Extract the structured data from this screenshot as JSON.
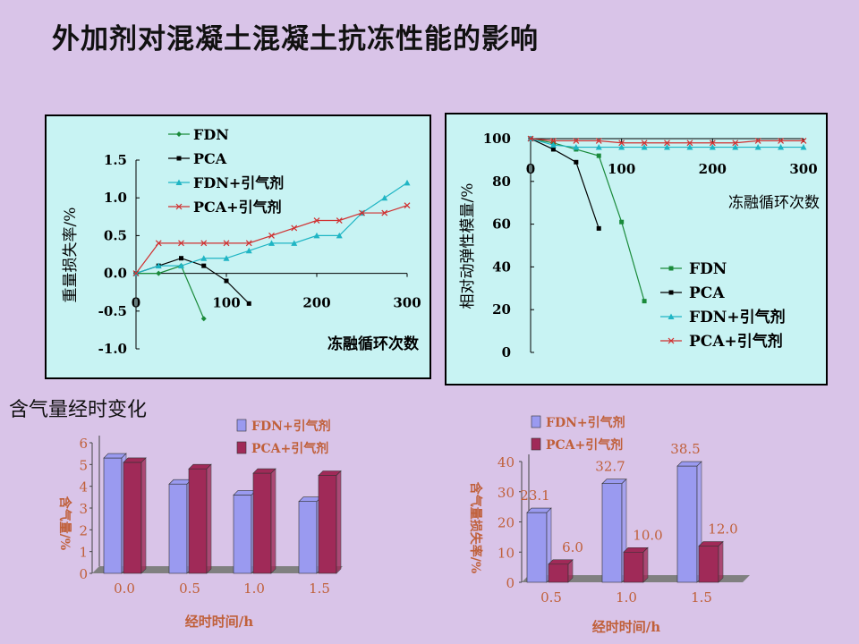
{
  "page": {
    "title": "外加剂对混凝土混凝土抗冻性能的影响",
    "subtitle": "含气量经时变化"
  },
  "chart_data": [
    {
      "id": "mass-loss",
      "type": "line",
      "xlabel": "冻融循环次数",
      "ylabel": "重量损失率/%",
      "xlim": [
        0,
        300
      ],
      "ylim": [
        -1.0,
        1.5
      ],
      "xticks": [
        "0",
        "100",
        "200",
        "300"
      ],
      "yticks": [
        "1.5",
        "1.0",
        "0.5",
        "0.0",
        "-0.5",
        "-1.0"
      ],
      "legend_position": "top-left",
      "series": [
        {
          "name": "FDN",
          "color": "#1a8a3a",
          "marker": "diamond",
          "x": [
            0,
            25,
            50,
            75
          ],
          "y": [
            0,
            0,
            0.1,
            -0.6
          ]
        },
        {
          "name": "PCA",
          "color": "#000000",
          "marker": "square",
          "x": [
            0,
            25,
            50,
            75,
            100,
            125
          ],
          "y": [
            0,
            0.1,
            0.2,
            0.1,
            -0.1,
            -0.4
          ]
        },
        {
          "name": "FDN+引气剂",
          "color": "#1fb5c4",
          "marker": "triangle",
          "x": [
            0,
            25,
            50,
            75,
            100,
            125,
            150,
            175,
            200,
            225,
            250,
            275,
            300
          ],
          "y": [
            0,
            0.1,
            0.1,
            0.2,
            0.2,
            0.3,
            0.4,
            0.4,
            0.5,
            0.5,
            0.8,
            1.0,
            1.2
          ]
        },
        {
          "name": "PCA+引气剂",
          "color": "#d03030",
          "marker": "x",
          "x": [
            0,
            25,
            50,
            75,
            100,
            125,
            150,
            175,
            200,
            225,
            250,
            275,
            300
          ],
          "y": [
            0,
            0.4,
            0.4,
            0.4,
            0.4,
            0.4,
            0.5,
            0.6,
            0.7,
            0.7,
            0.8,
            0.8,
            0.9
          ]
        }
      ]
    },
    {
      "id": "dynamic-modulus",
      "type": "line",
      "xlabel": "冻融循环次数",
      "ylabel": "相对动弹性模量/%",
      "xlim": [
        0,
        300
      ],
      "ylim": [
        0,
        100
      ],
      "xticks": [
        "0",
        "100",
        "200",
        "300"
      ],
      "yticks": [
        "100",
        "80",
        "60",
        "40",
        "20",
        "0"
      ],
      "legend_position": "bottom-right",
      "series": [
        {
          "name": "FDN",
          "color": "#1a8a3a",
          "marker": "square",
          "x": [
            0,
            25,
            50,
            75,
            100,
            125
          ],
          "y": [
            100,
            98,
            95,
            92,
            61,
            24
          ]
        },
        {
          "name": "PCA",
          "color": "#000000",
          "marker": "square",
          "x": [
            0,
            25,
            50,
            75
          ],
          "y": [
            100,
            95,
            89,
            58
          ]
        },
        {
          "name": "FDN+引气剂",
          "color": "#1fb5c4",
          "marker": "triangle",
          "x": [
            0,
            25,
            50,
            75,
            100,
            125,
            150,
            175,
            200,
            225,
            250,
            275,
            300
          ],
          "y": [
            100,
            97,
            96,
            96,
            96,
            96,
            96,
            96,
            96,
            96,
            96,
            96,
            96
          ]
        },
        {
          "name": "PCA+引气剂",
          "color": "#d03030",
          "marker": "x",
          "x": [
            0,
            25,
            50,
            75,
            100,
            125,
            150,
            175,
            200,
            225,
            250,
            275,
            300
          ],
          "y": [
            100,
            99,
            99,
            99,
            98,
            98,
            98,
            98,
            98,
            98,
            99,
            99,
            99
          ]
        }
      ]
    },
    {
      "id": "air-content",
      "type": "bar",
      "xlabel": "经时时间/h",
      "ylabel": "含气量/%",
      "ylim": [
        0,
        6
      ],
      "yticks": [
        "0",
        "1",
        "2",
        "3",
        "4",
        "5",
        "6"
      ],
      "categories": [
        "0.0",
        "0.5",
        "1.0",
        "1.5"
      ],
      "series": [
        {
          "name": "FDN+引气剂",
          "color": "#9a9af0",
          "values": [
            5.3,
            4.1,
            3.6,
            3.3
          ]
        },
        {
          "name": "PCA+引气剂",
          "color": "#a02a58",
          "values": [
            5.1,
            4.8,
            4.6,
            4.5
          ]
        }
      ]
    },
    {
      "id": "air-loss",
      "type": "bar",
      "xlabel": "经时时间/h",
      "ylabel": "含气量损失率/%",
      "ylim": [
        0,
        40
      ],
      "yticks": [
        "0",
        "10",
        "20",
        "30",
        "40"
      ],
      "categories": [
        "0.5",
        "1.0",
        "1.5"
      ],
      "series": [
        {
          "name": "FDN+引气剂",
          "color": "#9a9af0",
          "values": [
            23.1,
            32.7,
            38.5
          ],
          "labels": [
            "23.1",
            "32.7",
            "38.5"
          ]
        },
        {
          "name": "PCA+引气剂",
          "color": "#a02a58",
          "values": [
            6.0,
            10.0,
            12.0
          ],
          "labels": [
            "6.0",
            "10.0",
            "12.0"
          ]
        }
      ]
    }
  ]
}
